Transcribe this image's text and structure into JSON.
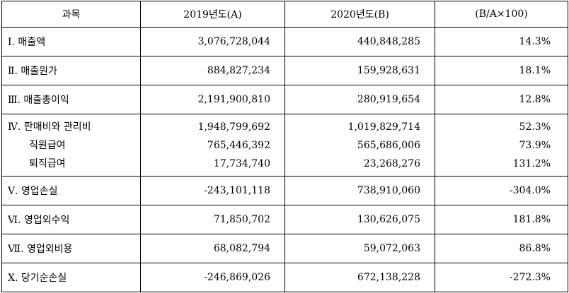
{
  "headers": [
    "과목",
    "2019년도(A)",
    "2020년도(B)",
    "(B/A×100)"
  ],
  "rows": [
    {
      "label": "Ⅰ. 매출액",
      "a": "3,076,728,044",
      "b": "440,848,285",
      "ratio": "14.3%"
    },
    {
      "label": "Ⅱ. 매출원가",
      "a": "884,827,234",
      "b": "159,928,631",
      "ratio": "18.1%"
    },
    {
      "label": "Ⅲ. 매출총이익",
      "a": "2,191,900,810",
      "b": "280,919,654",
      "ratio": "12.8%"
    },
    {
      "label": "Ⅴ. 영업손실",
      "a": "-243,101,118",
      "b": "738,910,060",
      "ratio": "-304.0%"
    },
    {
      "label": "Ⅵ. 영업외수익",
      "a": "71,850,702",
      "b": "130,626,075",
      "ratio": "181.8%"
    },
    {
      "label": "Ⅶ. 영업외비용",
      "a": "68,082,794",
      "b": "59,072,063",
      "ratio": "86.8%"
    },
    {
      "label": "Ⅹ. 당기순손실",
      "a": "-246,869,026",
      "b": "672,138,228",
      "ratio": "-272.3%"
    }
  ],
  "sga": {
    "label": "Ⅳ. 판매비와 관리비",
    "a": "1,948,799,692",
    "b": "1,019,829,714",
    "ratio": "52.3%",
    "items": [
      {
        "label": "직원급여",
        "a": "765,446,392",
        "b": "565,686,006",
        "ratio": "73.9%"
      },
      {
        "label": "퇴직급여",
        "a": "17,734,740",
        "b": "23,268,276",
        "ratio": "131.2%"
      }
    ]
  }
}
